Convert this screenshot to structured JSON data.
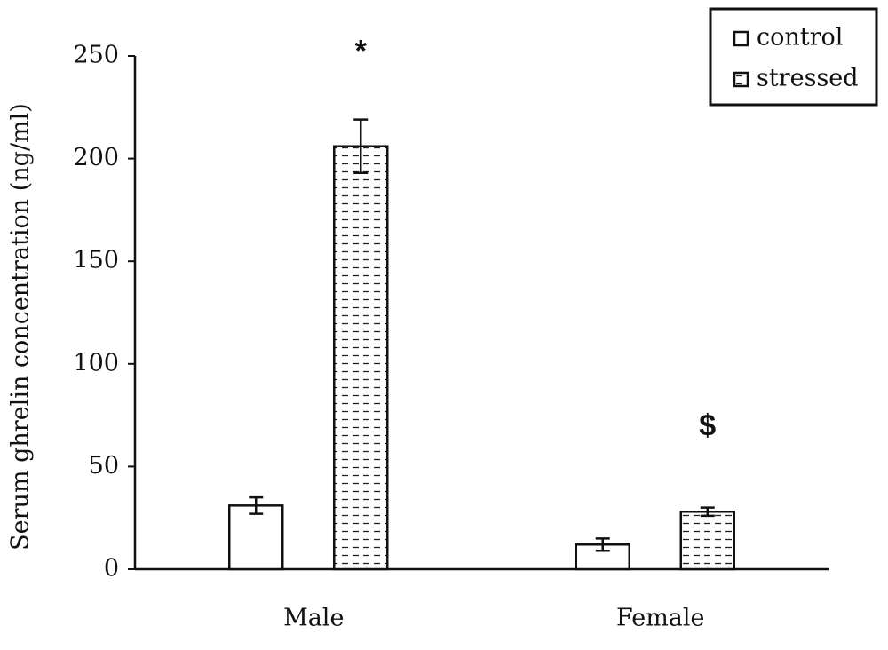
{
  "chart_data": {
    "type": "bar",
    "y_label": "Serum ghrelin concentration (ng/ml)",
    "categories": [
      "Male",
      "Female"
    ],
    "series": [
      {
        "name": "control",
        "color": "#ffffff",
        "hatch": "none",
        "values": [
          31,
          12
        ],
        "errors": [
          4,
          3
        ]
      },
      {
        "name": "stressed",
        "color": "#ffffff",
        "hatch": "dashes",
        "values": [
          206,
          28
        ],
        "errors": [
          13,
          2
        ]
      }
    ],
    "annotations": [
      "*",
      "$"
    ],
    "ylim": [
      0,
      250
    ],
    "yticks": [
      0,
      50,
      100,
      150,
      200,
      250
    ],
    "grid": false,
    "legend": "top-right"
  }
}
